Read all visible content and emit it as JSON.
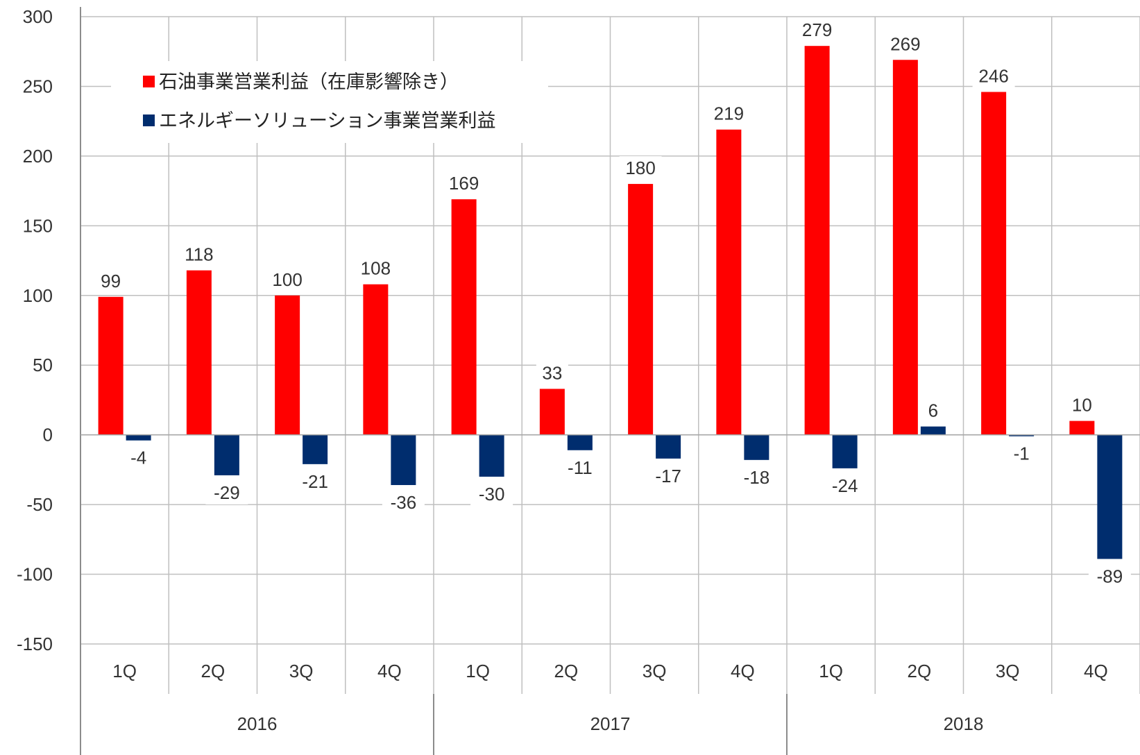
{
  "chart_data": {
    "type": "bar",
    "quarters": [
      "1Q",
      "2Q",
      "3Q",
      "4Q",
      "1Q",
      "2Q",
      "3Q",
      "4Q",
      "1Q",
      "2Q",
      "3Q",
      "4Q"
    ],
    "years": [
      "2016",
      "2017",
      "2018"
    ],
    "series": [
      {
        "name": "石油事業営業利益（在庫影響除き）",
        "color": "#ff0000",
        "values": [
          99,
          118,
          100,
          108,
          169,
          33,
          180,
          219,
          279,
          269,
          246,
          10
        ],
        "labels": [
          "99",
          "118",
          "100",
          "108",
          "169",
          "33",
          "180",
          "219",
          "279",
          "269",
          "246",
          "10"
        ]
      },
      {
        "name": "エネルギーソリューション事業営業利益",
        "color": "#002d6e",
        "values": [
          -4,
          -29,
          -21,
          -36,
          -30,
          -11,
          -17,
          -18,
          -24,
          6,
          -1,
          -89
        ],
        "labels": [
          "-4",
          "-29",
          "-21",
          "-36",
          "-30",
          "-11",
          "-17",
          "-18",
          "-24",
          "6",
          "-1",
          "-89"
        ]
      }
    ],
    "ylim": [
      -150,
      300
    ],
    "yticks": [
      "300",
      "250",
      "200",
      "150",
      "100",
      "50",
      "0",
      "-50",
      "-100",
      "-150"
    ],
    "ytick_values": [
      300,
      250,
      200,
      150,
      100,
      50,
      0,
      -50,
      -100,
      -150
    ],
    "grid": true,
    "legend_position": "top-left"
  }
}
